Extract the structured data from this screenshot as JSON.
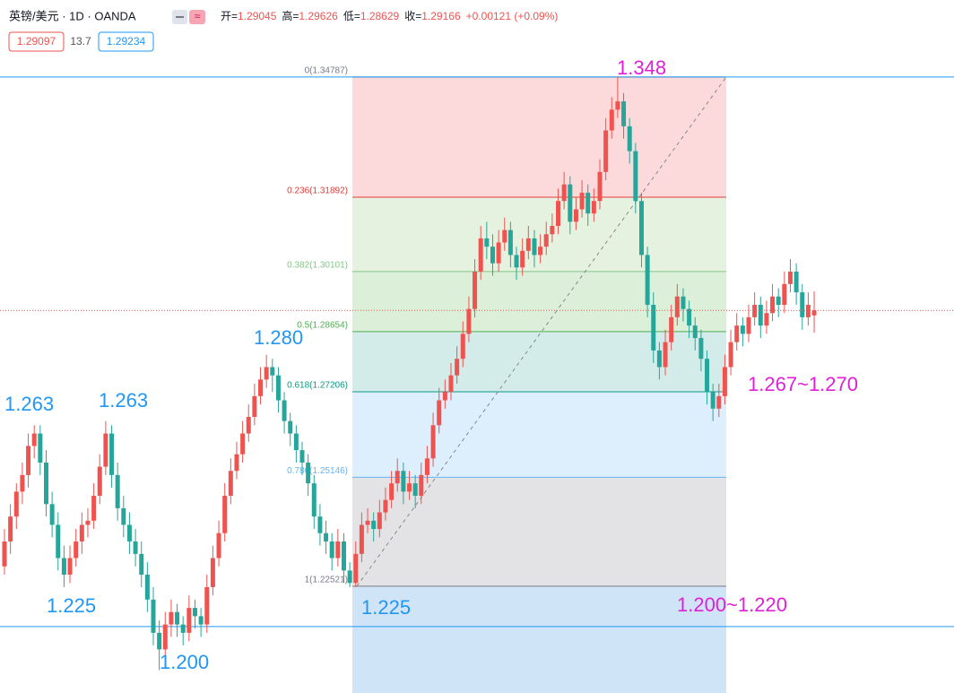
{
  "chart_data": {
    "type": "candlestick",
    "title": "英镑/美元 · 1D · OANDA",
    "ohlc_labels": [
      "开=",
      "高=",
      "低=",
      "收="
    ],
    "change": "+0.00121 (+0.09%)",
    "bid": 1.29097,
    "spread": 13.7,
    "ask": 1.29234,
    "up_color": "#ef5350",
    "down_color": "#26a69a",
    "ylim": [
      1.1995,
      1.3608
    ],
    "candles": [
      [
        1.23,
        1.239,
        1.228,
        1.236
      ],
      [
        1.236,
        1.245,
        1.233,
        1.242
      ],
      [
        1.242,
        1.25,
        1.239,
        1.248
      ],
      [
        1.248,
        1.255,
        1.245,
        1.252
      ],
      [
        1.252,
        1.262,
        1.249,
        1.259
      ],
      [
        1.259,
        1.264,
        1.256,
        1.262
      ],
      [
        1.262,
        1.264,
        1.252,
        1.255
      ],
      [
        1.255,
        1.258,
        1.242,
        1.245
      ],
      [
        1.245,
        1.248,
        1.237,
        1.24
      ],
      [
        1.24,
        1.243,
        1.229,
        1.232
      ],
      [
        1.232,
        1.235,
        1.225,
        1.228
      ],
      [
        1.228,
        1.235,
        1.226,
        1.232
      ],
      [
        1.232,
        1.239,
        1.23,
        1.236
      ],
      [
        1.236,
        1.243,
        1.233,
        1.24
      ],
      [
        1.24,
        1.244,
        1.237,
        1.241
      ],
      [
        1.241,
        1.25,
        1.239,
        1.247
      ],
      [
        1.247,
        1.257,
        1.245,
        1.254
      ],
      [
        1.254,
        1.265,
        1.252,
        1.262
      ],
      [
        1.262,
        1.264,
        1.249,
        1.252
      ],
      [
        1.252,
        1.255,
        1.241,
        1.244
      ],
      [
        1.244,
        1.247,
        1.237,
        1.24
      ],
      [
        1.24,
        1.243,
        1.233,
        1.236
      ],
      [
        1.236,
        1.239,
        1.23,
        1.233
      ],
      [
        1.233,
        1.236,
        1.225,
        1.228
      ],
      [
        1.228,
        1.231,
        1.219,
        1.222
      ],
      [
        1.222,
        1.225,
        1.211,
        1.214
      ],
      [
        1.214,
        1.217,
        1.205,
        1.21
      ],
      [
        1.21,
        1.219,
        1.208,
        1.216
      ],
      [
        1.216,
        1.222,
        1.213,
        1.219
      ],
      [
        1.219,
        1.221,
        1.213,
        1.216
      ],
      [
        1.216,
        1.218,
        1.211,
        1.214
      ],
      [
        1.214,
        1.223,
        1.212,
        1.22
      ],
      [
        1.22,
        1.222,
        1.215,
        1.218
      ],
      [
        1.218,
        1.22,
        1.213,
        1.216
      ],
      [
        1.216,
        1.228,
        1.214,
        1.225
      ],
      [
        1.225,
        1.235,
        1.223,
        1.232
      ],
      [
        1.232,
        1.241,
        1.23,
        1.238
      ],
      [
        1.238,
        1.25,
        1.236,
        1.247
      ],
      [
        1.247,
        1.256,
        1.245,
        1.253
      ],
      [
        1.253,
        1.26,
        1.251,
        1.257
      ],
      [
        1.257,
        1.265,
        1.255,
        1.262
      ],
      [
        1.262,
        1.269,
        1.26,
        1.266
      ],
      [
        1.266,
        1.274,
        1.264,
        1.271
      ],
      [
        1.271,
        1.278,
        1.269,
        1.275
      ],
      [
        1.275,
        1.281,
        1.273,
        1.278
      ],
      [
        1.278,
        1.28,
        1.272,
        1.276
      ],
      [
        1.276,
        1.278,
        1.267,
        1.27
      ],
      [
        1.27,
        1.272,
        1.262,
        1.265
      ],
      [
        1.265,
        1.267,
        1.259,
        1.262
      ],
      [
        1.262,
        1.264,
        1.255,
        1.258
      ],
      [
        1.258,
        1.26,
        1.252,
        1.255
      ],
      [
        1.255,
        1.257,
        1.247,
        1.25
      ],
      [
        1.25,
        1.252,
        1.239,
        1.242
      ],
      [
        1.242,
        1.245,
        1.235,
        1.238
      ],
      [
        1.238,
        1.241,
        1.233,
        1.236
      ],
      [
        1.236,
        1.238,
        1.229,
        1.232
      ],
      [
        1.232,
        1.239,
        1.23,
        1.236
      ],
      [
        1.236,
        1.238,
        1.226,
        1.229
      ],
      [
        1.229,
        1.231,
        1.225,
        1.226
      ],
      [
        1.226,
        1.236,
        1.225,
        1.233
      ],
      [
        1.233,
        1.243,
        1.231,
        1.24
      ],
      [
        1.24,
        1.244,
        1.238,
        1.241
      ],
      [
        1.241,
        1.243,
        1.236,
        1.239
      ],
      [
        1.239,
        1.246,
        1.237,
        1.243
      ],
      [
        1.243,
        1.249,
        1.241,
        1.246
      ],
      [
        1.246,
        1.253,
        1.244,
        1.25
      ],
      [
        1.25,
        1.256,
        1.248,
        1.253
      ],
      [
        1.253,
        1.255,
        1.245,
        1.248
      ],
      [
        1.248,
        1.253,
        1.246,
        1.25
      ],
      [
        1.25,
        1.252,
        1.244,
        1.247
      ],
      [
        1.247,
        1.255,
        1.245,
        1.252
      ],
      [
        1.252,
        1.259,
        1.25,
        1.256
      ],
      [
        1.256,
        1.267,
        1.254,
        1.264
      ],
      [
        1.264,
        1.273,
        1.262,
        1.27
      ],
      [
        1.27,
        1.275,
        1.268,
        1.272
      ],
      [
        1.272,
        1.279,
        1.27,
        1.276
      ],
      [
        1.276,
        1.283,
        1.274,
        1.28
      ],
      [
        1.28,
        1.289,
        1.278,
        1.286
      ],
      [
        1.286,
        1.295,
        1.284,
        1.292
      ],
      [
        1.292,
        1.304,
        1.29,
        1.301
      ],
      [
        1.301,
        1.312,
        1.299,
        1.309
      ],
      [
        1.309,
        1.313,
        1.304,
        1.307
      ],
      [
        1.307,
        1.31,
        1.3,
        1.303
      ],
      [
        1.303,
        1.311,
        1.301,
        1.308
      ],
      [
        1.308,
        1.314,
        1.306,
        1.311
      ],
      [
        1.311,
        1.313,
        1.302,
        1.305
      ],
      [
        1.305,
        1.307,
        1.299,
        1.302
      ],
      [
        1.302,
        1.309,
        1.3,
        1.306
      ],
      [
        1.306,
        1.312,
        1.304,
        1.309
      ],
      [
        1.309,
        1.311,
        1.302,
        1.305
      ],
      [
        1.305,
        1.31,
        1.303,
        1.307
      ],
      [
        1.307,
        1.313,
        1.305,
        1.31
      ],
      [
        1.31,
        1.315,
        1.308,
        1.312
      ],
      [
        1.312,
        1.321,
        1.31,
        1.318
      ],
      [
        1.318,
        1.325,
        1.316,
        1.322
      ],
      [
        1.322,
        1.324,
        1.31,
        1.313
      ],
      [
        1.313,
        1.319,
        1.311,
        1.316
      ],
      [
        1.316,
        1.323,
        1.314,
        1.32
      ],
      [
        1.32,
        1.322,
        1.312,
        1.315
      ],
      [
        1.315,
        1.321,
        1.313,
        1.318
      ],
      [
        1.318,
        1.328,
        1.316,
        1.325
      ],
      [
        1.325,
        1.338,
        1.323,
        1.335
      ],
      [
        1.335,
        1.343,
        1.333,
        1.34
      ],
      [
        1.34,
        1.348,
        1.338,
        1.342
      ],
      [
        1.342,
        1.344,
        1.333,
        1.336
      ],
      [
        1.336,
        1.338,
        1.327,
        1.33
      ],
      [
        1.33,
        1.332,
        1.315,
        1.318
      ],
      [
        1.318,
        1.32,
        1.302,
        1.305
      ],
      [
        1.305,
        1.307,
        1.29,
        1.293
      ],
      [
        1.293,
        1.296,
        1.279,
        1.282
      ],
      [
        1.282,
        1.284,
        1.275,
        1.278
      ],
      [
        1.278,
        1.287,
        1.276,
        1.284
      ],
      [
        1.284,
        1.293,
        1.282,
        1.29
      ],
      [
        1.29,
        1.298,
        1.288,
        1.295
      ],
      [
        1.295,
        1.297,
        1.289,
        1.292
      ],
      [
        1.292,
        1.294,
        1.285,
        1.288
      ],
      [
        1.288,
        1.29,
        1.282,
        1.285
      ],
      [
        1.285,
        1.287,
        1.277,
        1.28
      ],
      [
        1.28,
        1.282,
        1.269,
        1.272
      ],
      [
        1.272,
        1.274,
        1.265,
        1.268
      ],
      [
        1.268,
        1.274,
        1.266,
        1.271
      ],
      [
        1.271,
        1.281,
        1.269,
        1.278
      ],
      [
        1.278,
        1.287,
        1.276,
        1.284
      ],
      [
        1.284,
        1.291,
        1.282,
        1.288
      ],
      [
        1.288,
        1.29,
        1.283,
        1.286
      ],
      [
        1.286,
        1.293,
        1.284,
        1.29
      ],
      [
        1.29,
        1.296,
        1.288,
        1.293
      ],
      [
        1.293,
        1.295,
        1.285,
        1.288
      ],
      [
        1.288,
        1.294,
        1.286,
        1.291
      ],
      [
        1.291,
        1.298,
        1.289,
        1.295
      ],
      [
        1.295,
        1.297,
        1.29,
        1.293
      ],
      [
        1.293,
        1.301,
        1.291,
        1.298
      ],
      [
        1.298,
        1.304,
        1.296,
        1.301
      ],
      [
        1.301,
        1.303,
        1.293,
        1.296
      ],
      [
        1.296,
        1.298,
        1.287,
        1.29
      ],
      [
        1.29,
        1.296,
        1.288,
        1.293
      ],
      [
        1.29045,
        1.29626,
        1.28629,
        1.29166
      ]
    ],
    "fib_levels": [
      {
        "value": 1.34787,
        "label": "0(1.34787)",
        "color": "#787b86",
        "fill": "#fcd9da"
      },
      {
        "value": 1.31892,
        "label": "0.236(1.31892)",
        "color": "#e53935",
        "fill": "#e6f2e0"
      },
      {
        "value": 1.30101,
        "label": "0.382(1.30101)",
        "color": "#81c784",
        "fill": "#dcefd9"
      },
      {
        "value": 1.28654,
        "label": "0.5(1.28654)",
        "color": "#4caf50",
        "fill": "#d3ecea"
      },
      {
        "value": 1.27206,
        "label": "0.618(1.27206)",
        "color": "#089981",
        "fill": "#ddeefc"
      },
      {
        "value": 1.25146,
        "label": "0.786(1.25146)",
        "color": "#64b5f6",
        "fill": "#e3e3e5"
      },
      {
        "value": 1.22521,
        "label": "1(1.22521)",
        "color": "#787b86",
        "fill": "#d0e4f8"
      }
    ],
    "hlines": [
      1.34787,
      1.2155
    ],
    "hline_color": "#2196f3",
    "annotations": [
      {
        "text": "1.263",
        "color": "#2196f3"
      },
      {
        "text": "1.263",
        "color": "#2196f3"
      },
      {
        "text": "1.225",
        "color": "#2196f3"
      },
      {
        "text": "1.200",
        "color": "#2196f3"
      },
      {
        "text": "1.280",
        "color": "#2196f3"
      },
      {
        "text": "1.225",
        "color": "#2196f3"
      },
      {
        "text": "1.348",
        "color": "#e020d8"
      },
      {
        "text": "1.267~1.270",
        "color": "#e020d8"
      },
      {
        "text": "1.200~1.220",
        "color": "#e020d8"
      }
    ]
  }
}
